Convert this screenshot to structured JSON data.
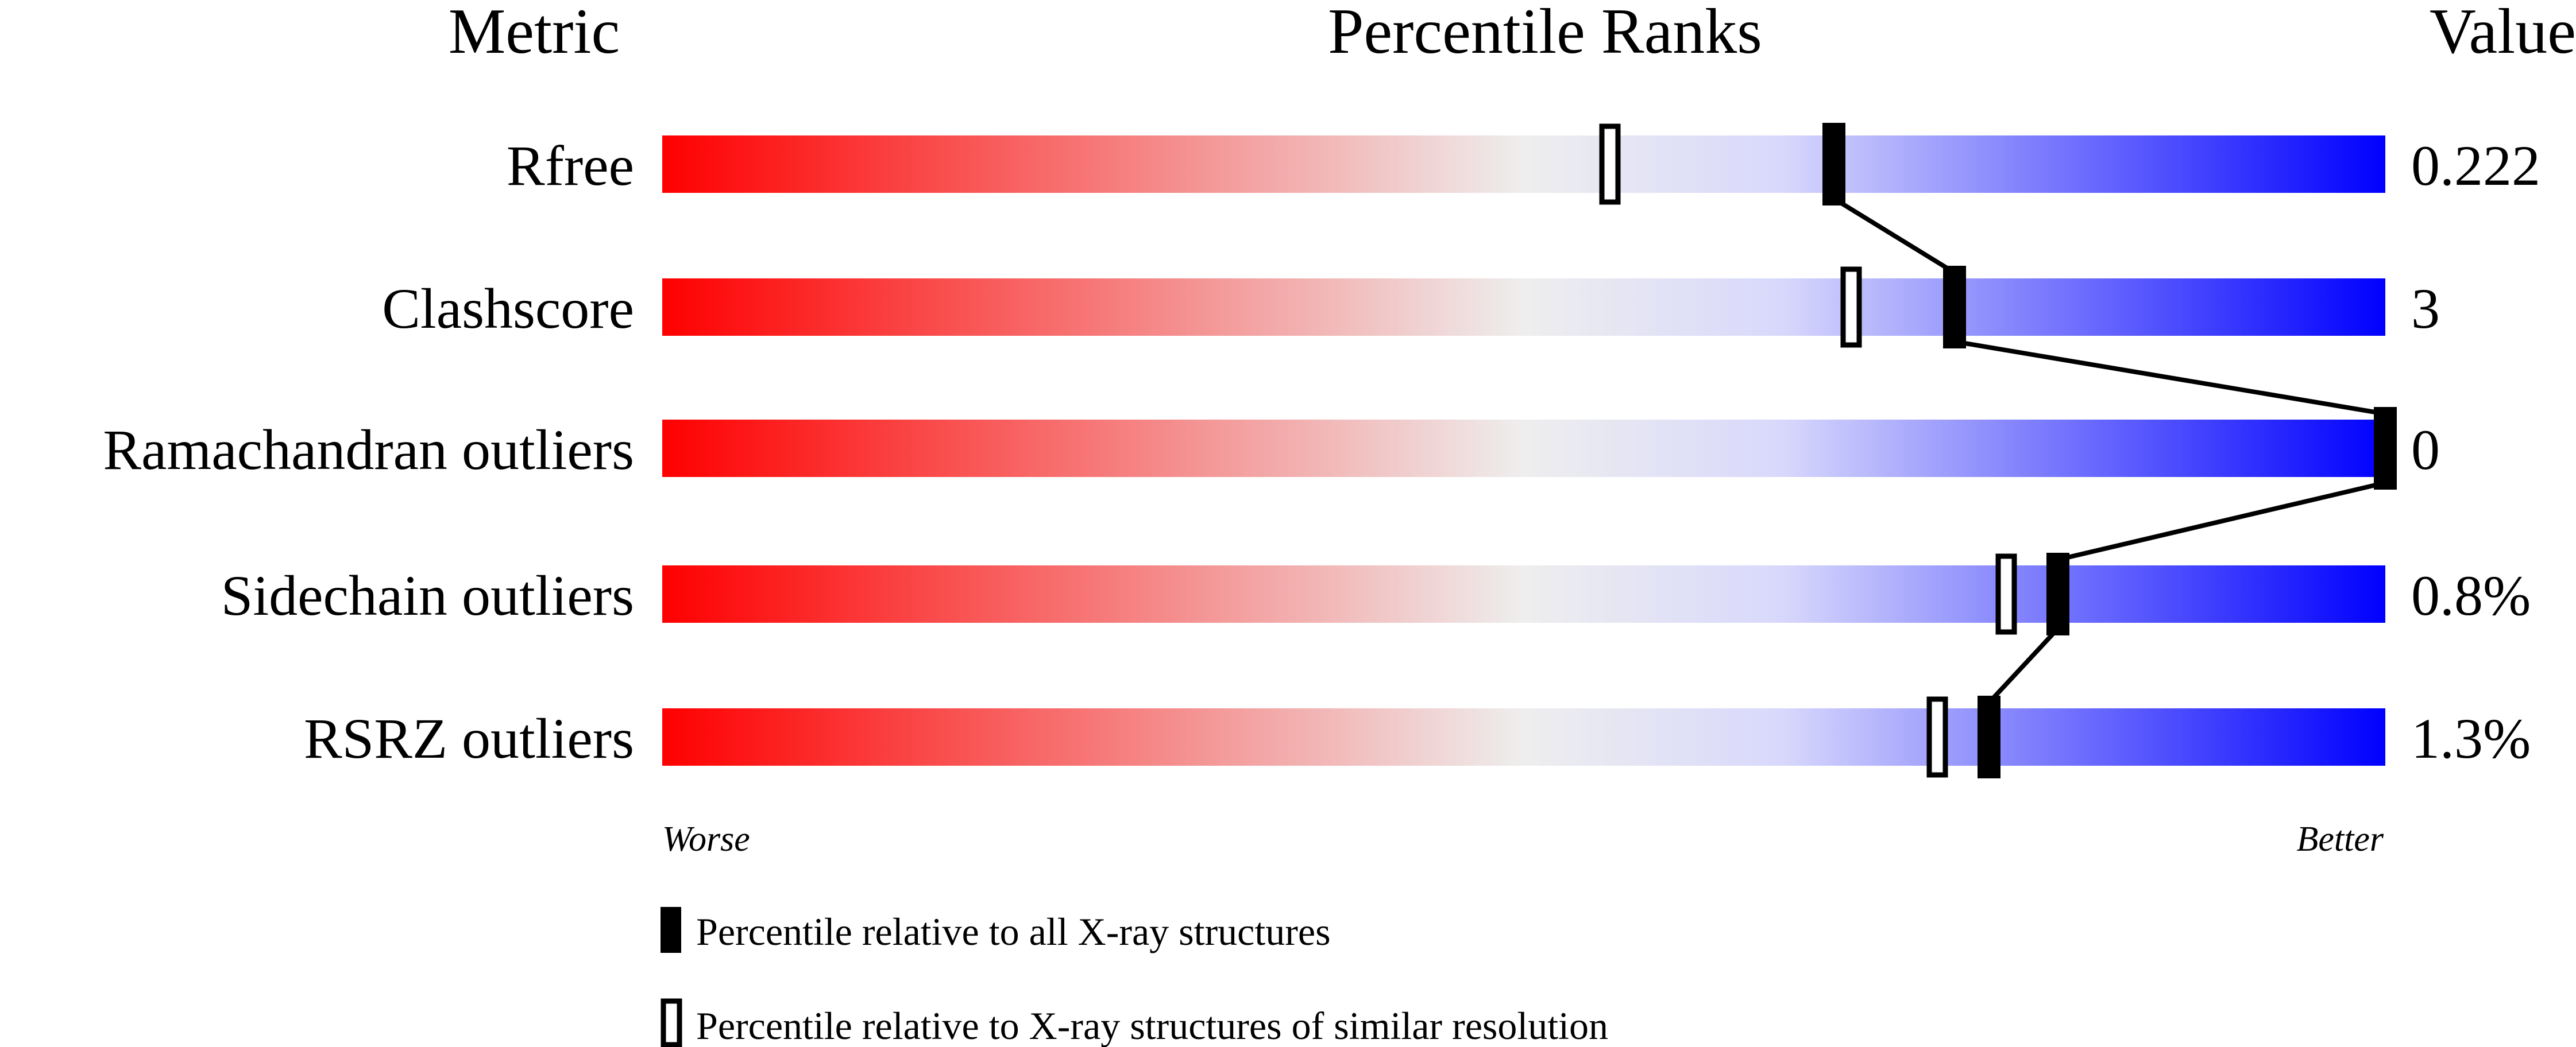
{
  "chart_data": {
    "type": "percentile-slider",
    "headers": {
      "metric": "Metric",
      "ranks": "Percentile Ranks",
      "value": "Value"
    },
    "xlim": [
      0,
      100
    ],
    "axis_labels": {
      "left": "Worse",
      "right": "Better"
    },
    "gradient_colors": [
      "#ff0000",
      "#eeeeee",
      "#d8d8fc",
      "#0000ff"
    ],
    "metrics": [
      {
        "name": "Rfree",
        "value": "0.222",
        "percentile_all": 68,
        "percentile_similar": 55
      },
      {
        "name": "Clashscore",
        "value": "3",
        "percentile_all": 75,
        "percentile_similar": 69
      },
      {
        "name": "Ramachandran outliers",
        "value": "0",
        "percentile_all": 100,
        "percentile_similar": 100
      },
      {
        "name": "Sidechain outliers",
        "value": "0.8%",
        "percentile_all": 81,
        "percentile_similar": 78
      },
      {
        "name": "RSRZ outliers",
        "value": "1.3%",
        "percentile_all": 77,
        "percentile_similar": 74
      }
    ],
    "legend": [
      {
        "marker": "filled",
        "label": "Percentile relative to all X-ray structures"
      },
      {
        "marker": "open",
        "label": "Percentile relative to X-ray structures of similar resolution"
      }
    ]
  }
}
